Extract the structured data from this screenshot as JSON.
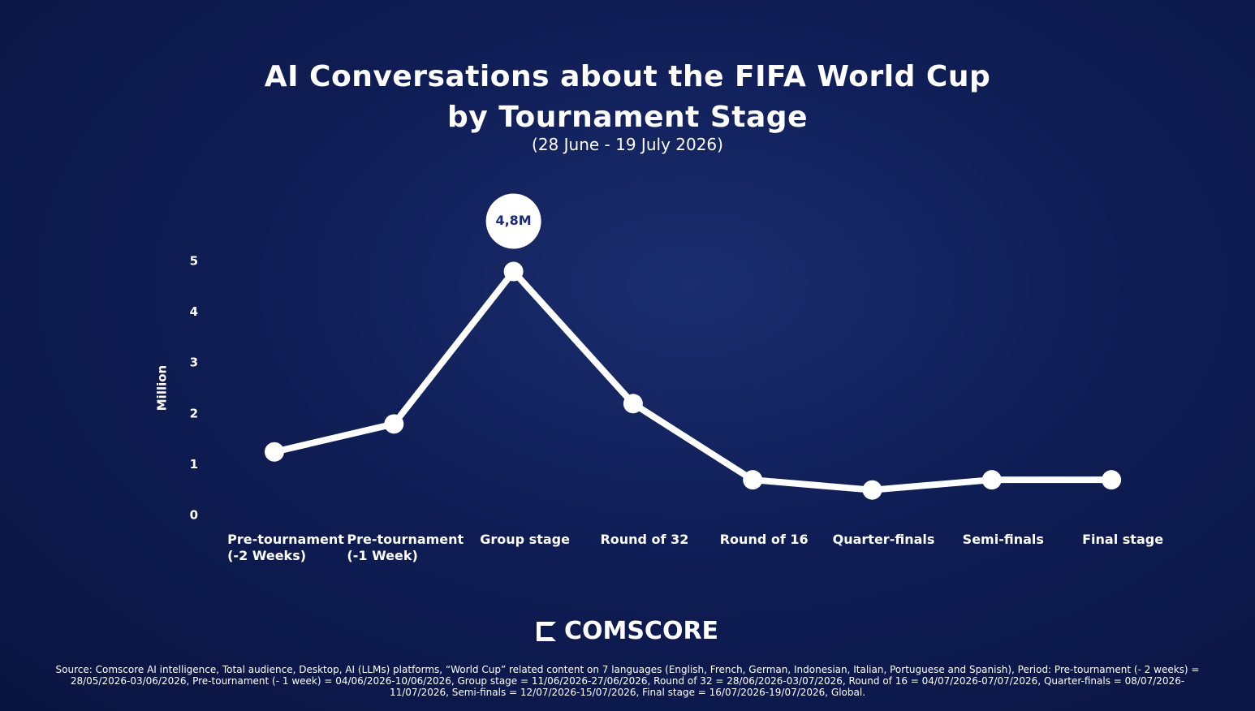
{
  "chart_data": {
    "type": "line",
    "title": "AI Conversations about the FIFA World Cup\nby Tournament Stage",
    "subtitle": "(28 June - 19 July 2026)",
    "y_label": "Million",
    "categories": [
      "Pre-tournament\n(-2 Weeks)",
      "Pre-tournament\n(-1 Week)",
      "Group stage",
      "Round of 32",
      "Round of 16",
      "Quarter-finals",
      "Semi-finals",
      "Final stage"
    ],
    "series": [
      {
        "name": "AI Conversations",
        "color": "#ffffff",
        "values": [
          1.25,
          1.8,
          4.8,
          2.2,
          0.7,
          0.5,
          0.7,
          0.7
        ],
        "value_labels": [
          null,
          null,
          "4,8M",
          null,
          null,
          null,
          null,
          null
        ]
      }
    ],
    "ylim": [
      0,
      5
    ],
    "yticks": [
      0,
      1,
      2,
      3,
      4,
      5
    ],
    "logo": "COMSCORE",
    "source": "Source: Comscore AI intelligence, Total audience, Desktop, AI (LLMs) platforms, “World Cup” related content on 7 languages (English, French, German, Indonesian, Italian, Portuguese and Spanish), Period: Pre-tournament (- 2 weeks) = 28/05/2026-03/06/2026, Pre-tournament (- 1 week) = 04/06/2026-10/06/2026, Group stage = 11/06/2026-27/06/2026, Round of 32 = 28/06/2026-03/07/2026, Round of 16 = 04/07/2026-07/07/2026, Quarter-finals = 08/07/2026-11/07/2026, Semi-finals = 12/07/2026-15/07/2026, Final stage = 16/07/2026-19/07/2026, Global."
  }
}
